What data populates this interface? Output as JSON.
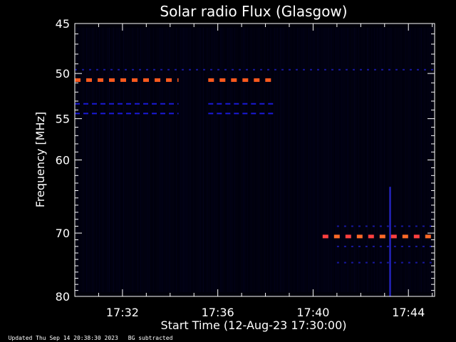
{
  "chart_data": {
    "type": "heatmap",
    "title": "Solar radio Flux (Glasgow)",
    "xlabel": "Start Time (12-Aug-23 17:30:00)",
    "ylabel": "Frequency [MHz]",
    "x_range_minutes": [
      0,
      15.1
    ],
    "y_range_mhz": [
      45,
      80
    ],
    "y_scale": "log",
    "y_ticks": [
      45,
      50,
      55,
      60,
      70,
      80
    ],
    "y_tick_labels": [
      "45",
      "50",
      "55",
      "60",
      "70",
      "80"
    ],
    "x_ticks": [
      2,
      6,
      10,
      14
    ],
    "x_tick_labels": [
      "17:32",
      "17:36",
      "17:40",
      "17:44"
    ],
    "background_color": "#000000",
    "bands": [
      {
        "freq": 50.7,
        "intensity": "high",
        "segments": [
          [
            0,
            4.35
          ],
          [
            5.6,
            8.35
          ]
        ]
      },
      {
        "freq": 53.3,
        "intensity": "low",
        "segments": [
          [
            0,
            4.35
          ],
          [
            5.6,
            8.35
          ]
        ]
      },
      {
        "freq": 54.4,
        "intensity": "low",
        "segments": [
          [
            0,
            4.35
          ],
          [
            5.6,
            8.35
          ]
        ]
      },
      {
        "freq": 49.6,
        "intensity": "faint",
        "segments": [
          [
            0,
            15.1
          ]
        ]
      },
      {
        "freq": 70.5,
        "intensity": "high",
        "segments": [
          [
            10.4,
            15.1
          ]
        ]
      },
      {
        "freq": 69.0,
        "intensity": "faint",
        "segments": [
          [
            11.0,
            15.1
          ]
        ]
      },
      {
        "freq": 72.0,
        "intensity": "faint",
        "segments": [
          [
            11.0,
            15.1
          ]
        ]
      },
      {
        "freq": 74.5,
        "intensity": "faint",
        "segments": [
          [
            11.0,
            15.1
          ]
        ]
      }
    ],
    "spikes": [
      {
        "time": 13.2,
        "freq_from": 63.5,
        "freq_to": 80
      }
    ]
  },
  "footer": {
    "updated": "Updated Thu Sep 14 20:38:30 2023",
    "note": "BG subtracted"
  }
}
